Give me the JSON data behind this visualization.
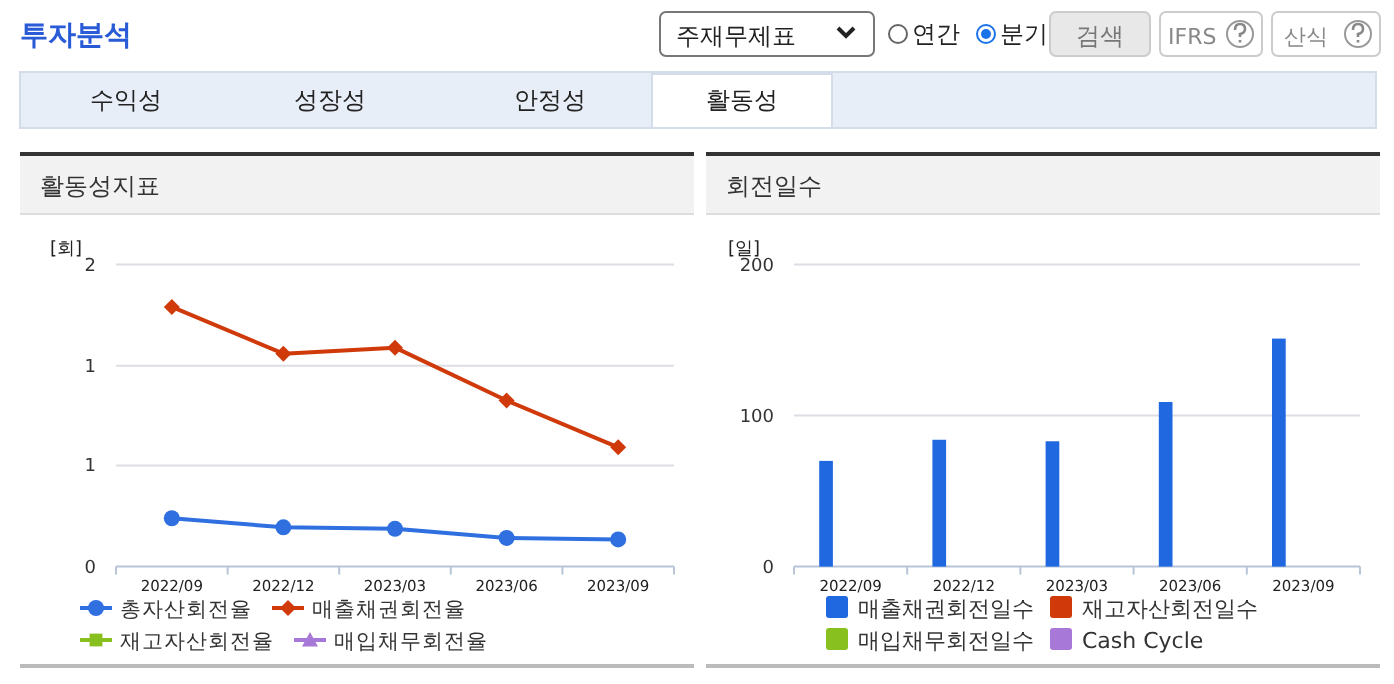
{
  "chart_data": [
    {
      "type": "other",
      "title": "투자분석",
      "annotations": [
        "주재무제표",
        "연간",
        "분기",
        "검색",
        "IFRS",
        "산식",
        "수익성",
        "성장성",
        "안정성",
        "활동성"
      ]
    },
    {
      "type": "line",
      "title": "활동성지표",
      "ylabel": "[회]",
      "categories": [
        "2022/09",
        "2022/12",
        "2023/03",
        "2023/06",
        "2023/09"
      ],
      "ylim": [
        0,
        2
      ],
      "yticks": [
        0,
        {
          "value": 0.67,
          "label": "1"
        },
        {
          "value": 1.33,
          "label": "1"
        },
        2
      ],
      "grid": "y",
      "legend": "bottom",
      "series": [
        {
          "name": "총자산회전율",
          "color": "#2f6fe0",
          "marker": "circle",
          "values": [
            0.32,
            0.26,
            0.25,
            0.19,
            0.18
          ]
        },
        {
          "name": "매출채권회전율",
          "color": "#d03a0a",
          "marker": "diamond",
          "values": [
            1.72,
            1.41,
            1.45,
            1.1,
            0.79
          ]
        },
        {
          "name": "재고자산회전율",
          "color": "#88c020",
          "marker": "square",
          "values": [
            null,
            null,
            null,
            null,
            null
          ]
        },
        {
          "name": "매입채무회전율",
          "color": "#a878d8",
          "marker": "triangle",
          "values": [
            null,
            null,
            null,
            null,
            null
          ]
        }
      ]
    },
    {
      "type": "bar",
      "title": "회전일수",
      "ylabel": "[일]",
      "categories": [
        "2022/09",
        "2022/12",
        "2023/03",
        "2023/06",
        "2023/09"
      ],
      "ylim": [
        0,
        200
      ],
      "yticks": [
        0,
        100,
        200
      ],
      "grid": "y",
      "legend": "bottom",
      "series": [
        {
          "name": "매출채권회전일수",
          "color": "#2068e0",
          "values": [
            70,
            84,
            83,
            109,
            151
          ]
        },
        {
          "name": "재고자산회전일수",
          "color": "#d03a0a",
          "values": [
            null,
            null,
            null,
            null,
            null
          ]
        },
        {
          "name": "매입채무회전일수",
          "color": "#88c020",
          "values": [
            null,
            null,
            null,
            null,
            null
          ]
        },
        {
          "name": "Cash Cycle",
          "color": "#a878d8",
          "values": [
            null,
            null,
            null,
            null,
            null
          ]
        }
      ]
    }
  ]
}
